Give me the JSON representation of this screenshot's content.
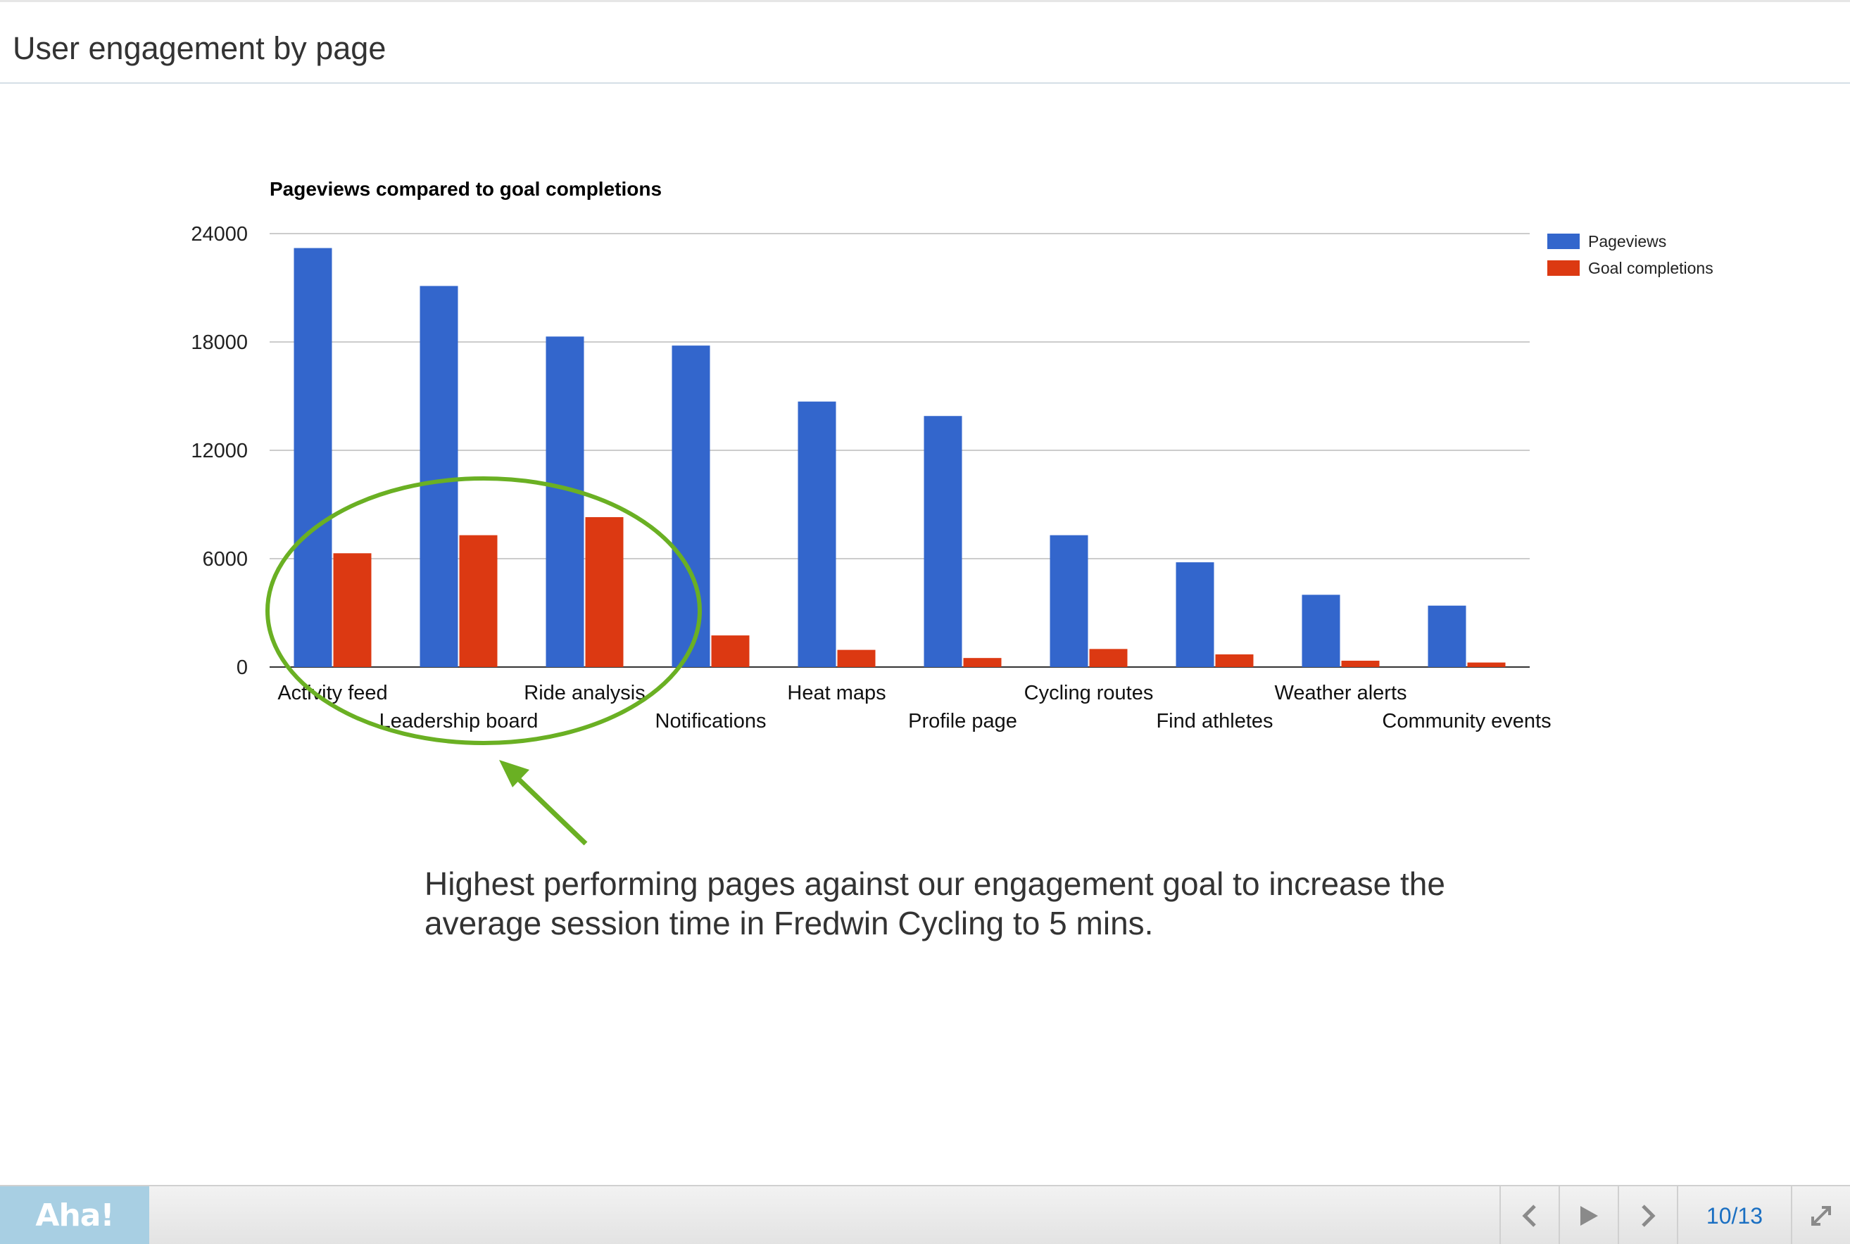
{
  "slide": {
    "title": "User engagement by page"
  },
  "chart_data": {
    "type": "bar",
    "title": "Pageviews compared to goal completions",
    "xlabel": "",
    "ylabel": "",
    "ylim": [
      0,
      24000
    ],
    "yticks": [
      "24000",
      "18000",
      "12000",
      "6000",
      "0"
    ],
    "grid": true,
    "legend_position": "right",
    "categories": [
      "Activity feed",
      "Leadership board",
      "Ride analysis",
      "Notifications",
      "Heat maps",
      "Profile page",
      "Cycling routes",
      "Find athletes",
      "Weather alerts",
      "Community events"
    ],
    "series": [
      {
        "name": "Pageviews",
        "color": "#3366cc",
        "values": [
          23200,
          21100,
          18300,
          17800,
          14700,
          13900,
          7300,
          5800,
          4000,
          3400
        ]
      },
      {
        "name": "Goal completions",
        "color": "#dc3912",
        "values": [
          6300,
          7300,
          8300,
          1750,
          950,
          500,
          1000,
          700,
          350,
          250
        ]
      }
    ]
  },
  "annotation": {
    "text": "Highest performing pages against our engagement goal to increase the average session time in Fredwin Cycling to 5 mins.",
    "highlight_color": "#6ab023"
  },
  "footer": {
    "logo": "Aha!",
    "page_counter": "10/13",
    "icons": [
      "prev-icon",
      "play-icon",
      "next-icon",
      "fullscreen-icon"
    ]
  }
}
